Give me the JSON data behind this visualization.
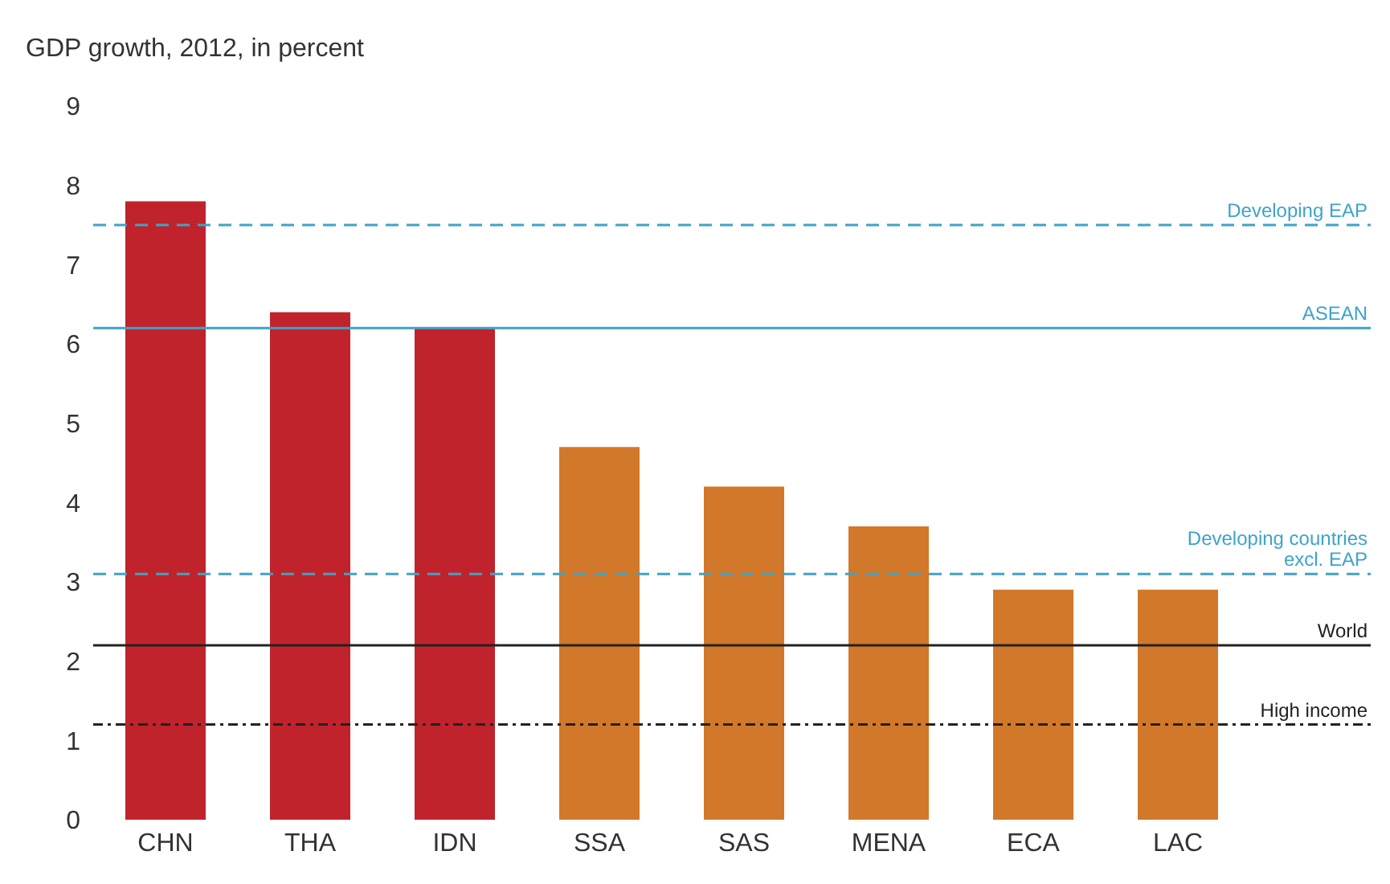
{
  "chart_data": {
    "type": "bar",
    "ylabel": "GDP growth, 2012, in percent",
    "categories": [
      "CHN",
      "THA",
      "IDN",
      "SSA",
      "SAS",
      "MENA",
      "ECA",
      "LAC"
    ],
    "values": [
      7.8,
      6.4,
      6.2,
      4.7,
      4.2,
      3.7,
      2.9,
      2.9
    ],
    "colors": [
      "#c0232c",
      "#c0232c",
      "#c0232c",
      "#d2782a",
      "#d2782a",
      "#d2782a",
      "#d2782a",
      "#d2782a"
    ],
    "ylim": [
      0,
      9
    ],
    "yticks": [
      0,
      1,
      2,
      3,
      4,
      5,
      6,
      7,
      8,
      9
    ],
    "grid": false,
    "legend": false,
    "ref_lines": [
      {
        "axis": "y",
        "value": 7.5,
        "label": "Developing EAP",
        "color": "#3fa3c8",
        "line_style": "dashed"
      },
      {
        "axis": "y",
        "value": 6.2,
        "label": "ASEAN",
        "color": "#3fa3c8",
        "line_style": "solid"
      },
      {
        "axis": "y",
        "value": 3.1,
        "label": "Developing countries excl. EAP",
        "color": "#3fa3c8",
        "line_style": "dashed"
      },
      {
        "axis": "y",
        "value": 2.2,
        "label": "World",
        "color": "#222222",
        "line_style": "solid"
      },
      {
        "axis": "y",
        "value": 1.2,
        "label": "High income",
        "color": "#222222",
        "line_style": "dotted"
      }
    ]
  }
}
